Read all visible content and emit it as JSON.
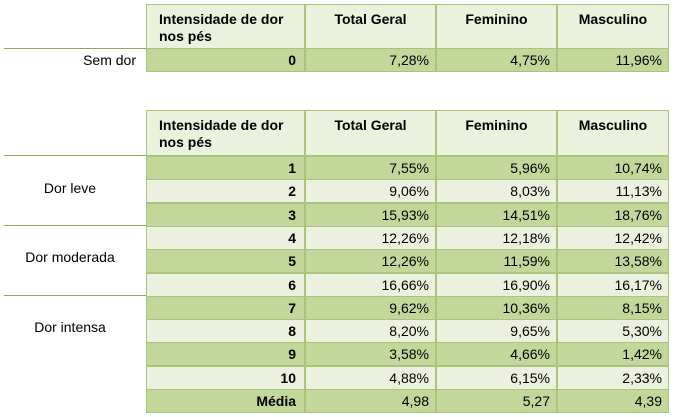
{
  "headers": [
    "Intensidade de dor nos pés",
    "Total Geral",
    "Feminino",
    "Masculino"
  ],
  "header_first_lines": [
    "Intensidade de dor",
    "nos pés"
  ],
  "top_table": {
    "row_label": "Sem dor",
    "row": [
      "0",
      "7,28%",
      "4,75%",
      "11,96%"
    ]
  },
  "bottom_table": {
    "groups": [
      "Dor leve",
      "Dor moderada",
      "Dor intensa"
    ],
    "rows": [
      [
        "1",
        "7,55%",
        "5,96%",
        "10,74%"
      ],
      [
        "2",
        "9,06%",
        "8,03%",
        "11,13%"
      ],
      [
        "3",
        "15,93%",
        "14,51%",
        "18,76%"
      ],
      [
        "4",
        "12,26%",
        "12,18%",
        "12,42%"
      ],
      [
        "5",
        "12,26%",
        "11,59%",
        "13,58%"
      ],
      [
        "6",
        "16,66%",
        "16,90%",
        "16,17%"
      ],
      [
        "7",
        "9,62%",
        "10,36%",
        "8,15%"
      ],
      [
        "8",
        "8,20%",
        "9,65%",
        "5,30%"
      ],
      [
        "9",
        "3,58%",
        "4,66%",
        "1,42%"
      ],
      [
        "10",
        "4,88%",
        "6,15%",
        "2,33%"
      ],
      [
        "Média",
        "4,98",
        "5,27",
        "4,39"
      ]
    ]
  }
}
